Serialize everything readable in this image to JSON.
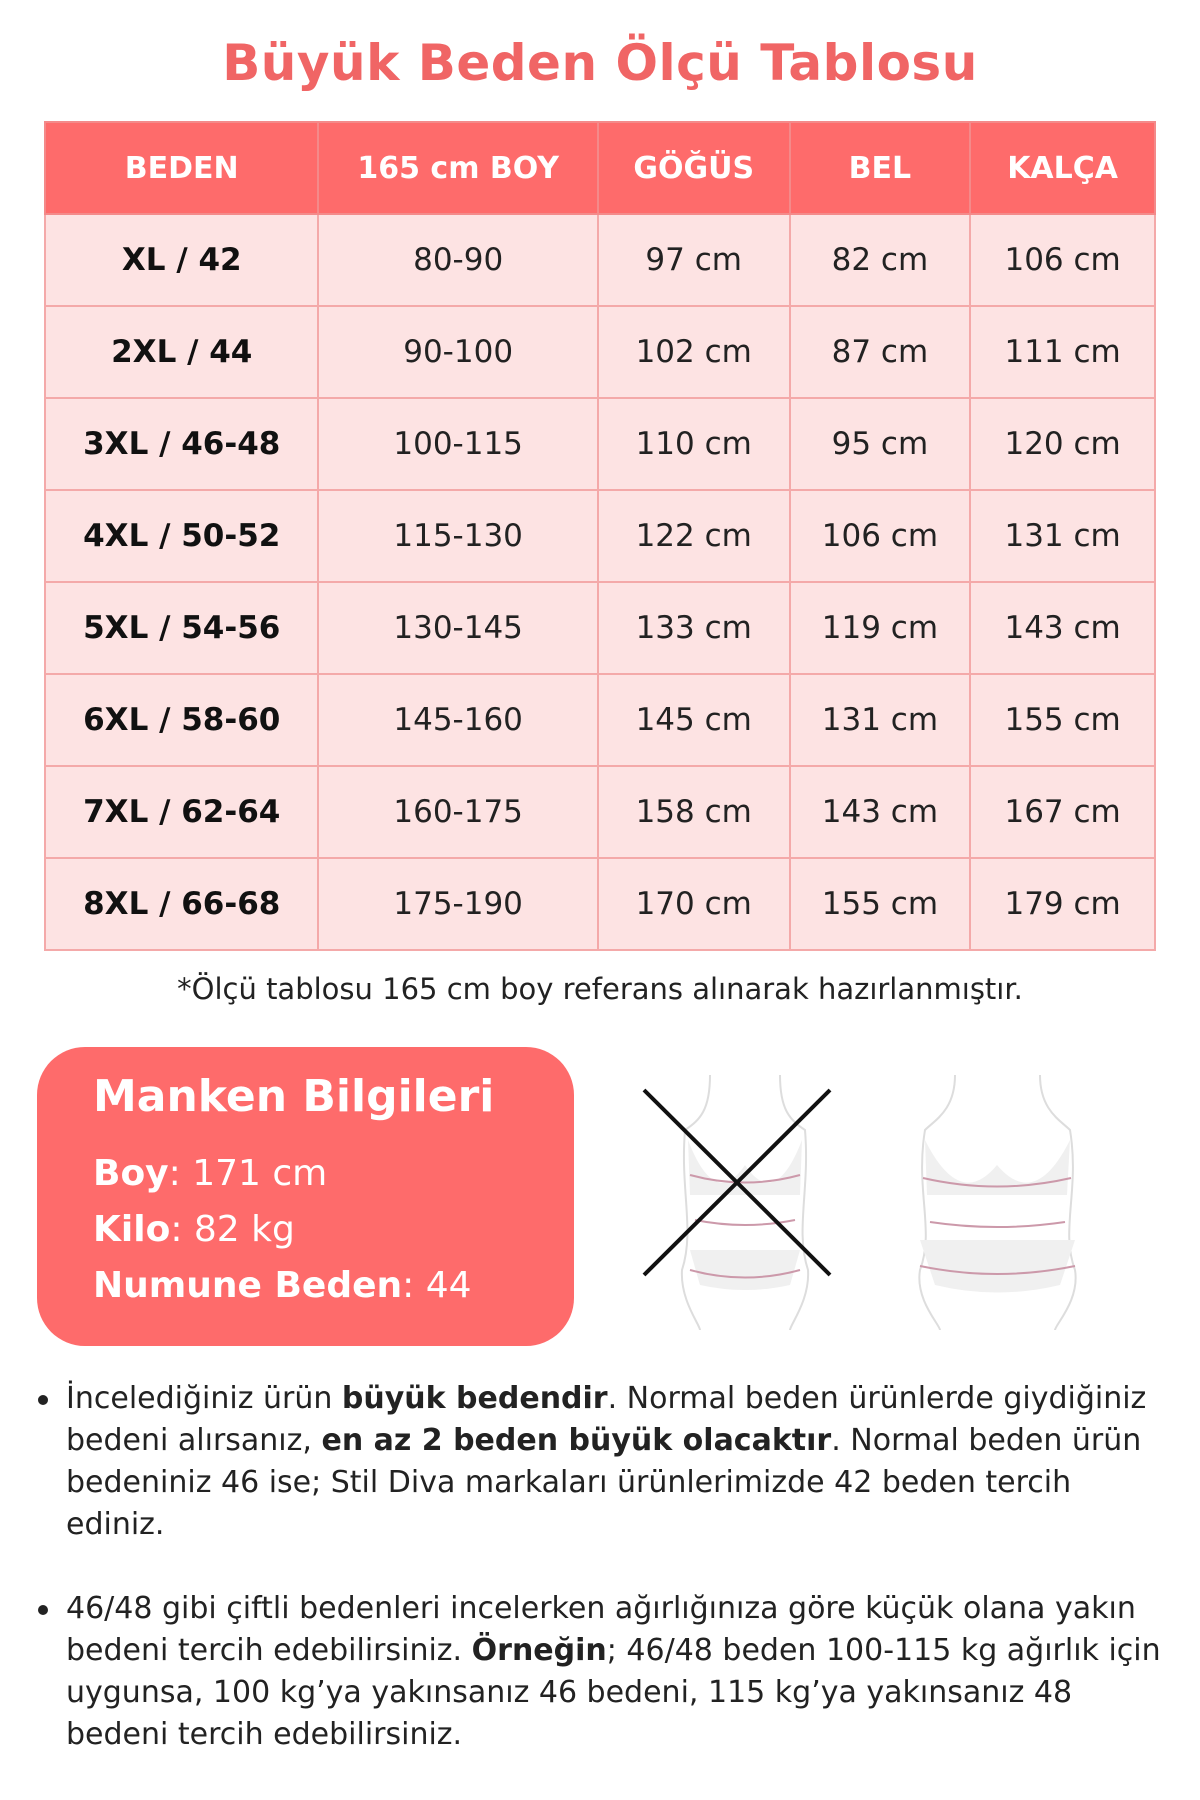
{
  "title": "Büyük Beden Ölçü Tablosu",
  "table": {
    "headers": [
      "BEDEN",
      "165 cm BOY",
      "GÖĞÜS",
      "BEL",
      "KALÇA"
    ],
    "rows": [
      [
        "XL / 42",
        "80-90",
        "97 cm",
        "82 cm",
        "106 cm"
      ],
      [
        "2XL / 44",
        "90-100",
        "102 cm",
        "87 cm",
        "111 cm"
      ],
      [
        "3XL / 46-48",
        "100-115",
        "110 cm",
        "95 cm",
        "120 cm"
      ],
      [
        "4XL / 50-52",
        "115-130",
        "122 cm",
        "106 cm",
        "131 cm"
      ],
      [
        "5XL / 54-56",
        "130-145",
        "133 cm",
        "119 cm",
        "143 cm"
      ],
      [
        "6XL / 58-60",
        "145-160",
        "145 cm",
        "131 cm",
        "155 cm"
      ],
      [
        "7XL / 62-64",
        "160-175",
        "158 cm",
        "143 cm",
        "167 cm"
      ],
      [
        "8XL / 66-68",
        "175-190",
        "170 cm",
        "155 cm",
        "179 cm"
      ]
    ]
  },
  "note": "*Ölçü tablosu 165 cm boy referans alınarak hazırlanmıştır.",
  "manken": {
    "title": "Manken Bilgileri",
    "boy_label": "Boy",
    "boy_value": ": 171 cm",
    "kilo_label": "Kilo",
    "kilo_value": ": 82 kg",
    "beden_label": "Numune Beden",
    "beden_value": ": 44"
  },
  "bullets": [
    {
      "p1": "İncelediğiniz ürün ",
      "b1": "büyük bedendir",
      "p2": ". Normal beden ürünlerde giydiğiniz bedeni alırsanız, ",
      "b2": "en az 2 beden büyük olacaktır",
      "p3": ". Normal beden ürün bedeniniz 46 ise; Stil Diva markaları ürünlerimizde 42 beden tercih ediniz."
    },
    {
      "p1": "46/48 gibi çiftli bedenleri incelerken ağırlığınıza göre küçük olana yakın bedeni tercih edebilirsiniz. ",
      "b1": "Örneğin",
      "p2": "; 46/48 beden 100-115 kg ağırlık için uygunsa, 100 kg’ya yakınsanız 46 bedeni, 115 kg’ya yakınsanız 48 bedeni tercih edebilirsiniz.",
      "b2": "",
      "p3": ""
    }
  ],
  "colors": {
    "accent": "#fe6b6b",
    "cell": "#fde3e3",
    "title": "#f06565"
  }
}
